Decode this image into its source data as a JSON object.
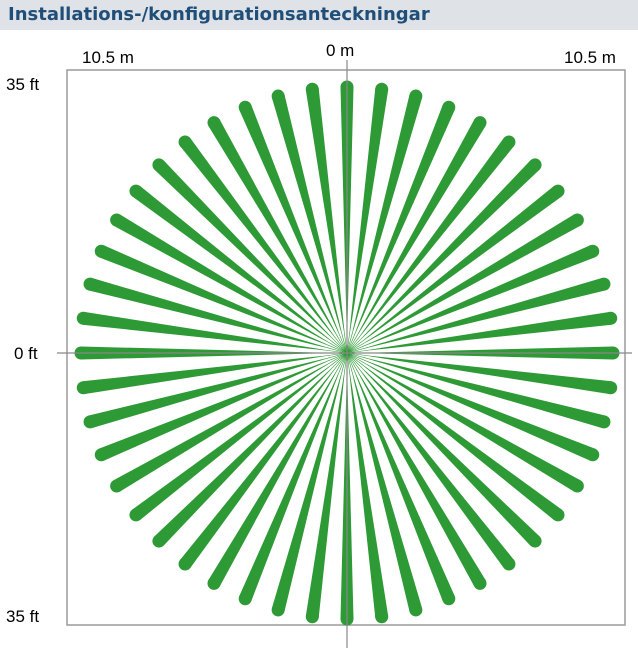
{
  "header": {
    "title": "Installations-/konfigurationsanteckningar"
  },
  "diagram": {
    "top_labels": {
      "left": "10.5 m",
      "center": "0 m",
      "right": "10.5 m"
    },
    "side_labels": {
      "top": "35 ft",
      "middle": "0 ft",
      "bottom": "35 ft"
    },
    "beam_count": 48,
    "colors": {
      "beam": "#2e9a36",
      "frame": "#9a9a9a",
      "axis": "#888888",
      "header_background": "#dfe2e6",
      "header_text": "#1f4e79"
    }
  }
}
